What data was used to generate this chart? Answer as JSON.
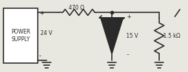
{
  "bg_color": "#e8e8e0",
  "line_color": "#2a2a2a",
  "box_label": "POWER\nSUPPLY",
  "voltage_label": "24 V",
  "plus_label": "+",
  "minus_label": "-",
  "resistor_label": "470 Ω",
  "zener_label": "15 V",
  "load_label": "1.5 kΩ",
  "line_width": 1.2,
  "font_size": 5.5
}
